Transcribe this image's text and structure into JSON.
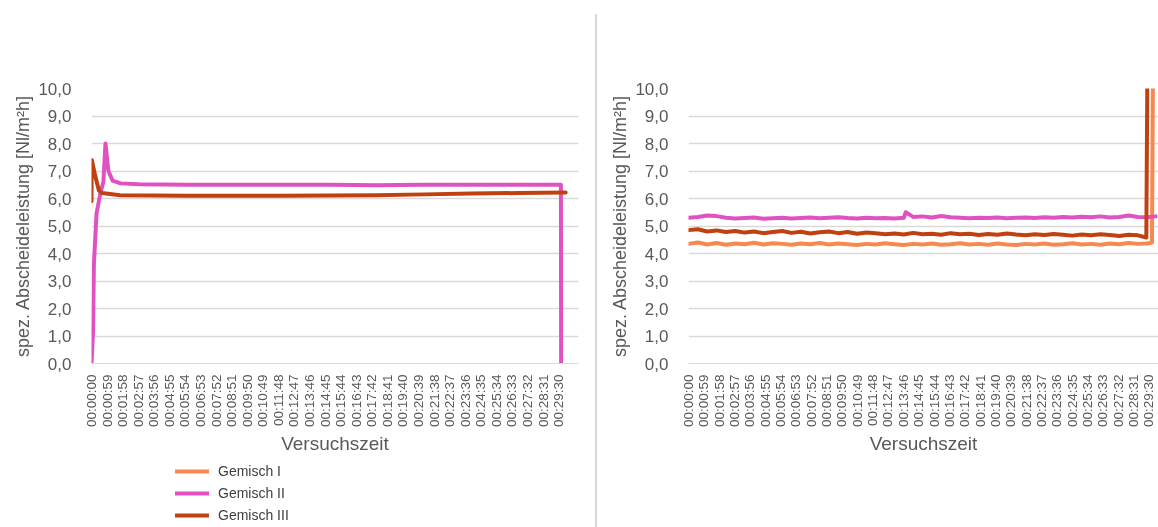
{
  "chart_data": [
    {
      "type": "line",
      "xlabel": "Versuchszeit",
      "ylabel": "spez. Abscheideleistung [Nl/m²h]",
      "xlim": [
        0,
        0.5125
      ],
      "ylim": [
        0,
        10
      ],
      "xticks": [
        {
          "value": 0,
          "label": "00:00:00"
        },
        {
          "value": 0.016389,
          "label": "00:00:59"
        },
        {
          "value": 0.032778,
          "label": "00:01:58"
        },
        {
          "value": 0.049167,
          "label": "00:02:57"
        },
        {
          "value": 0.065556,
          "label": "00:03:56"
        },
        {
          "value": 0.081944,
          "label": "00:04:55"
        },
        {
          "value": 0.098333,
          "label": "00:05:54"
        },
        {
          "value": 0.114722,
          "label": "00:06:53"
        },
        {
          "value": 0.131111,
          "label": "00:07:52"
        },
        {
          "value": 0.1475,
          "label": "00:08:51"
        },
        {
          "value": 0.163889,
          "label": "00:09:50"
        },
        {
          "value": 0.180278,
          "label": "00:10:49"
        },
        {
          "value": 0.196667,
          "label": "00:11:48"
        },
        {
          "value": 0.213056,
          "label": "00:12:47"
        },
        {
          "value": 0.229444,
          "label": "00:13:46"
        },
        {
          "value": 0.245833,
          "label": "00:14:45"
        },
        {
          "value": 0.262222,
          "label": "00:15:44"
        },
        {
          "value": 0.278611,
          "label": "00:16:43"
        },
        {
          "value": 0.295,
          "label": "00:17:42"
        },
        {
          "value": 0.311389,
          "label": "00:18:41"
        },
        {
          "value": 0.327778,
          "label": "00:19:40"
        },
        {
          "value": 0.344167,
          "label": "00:20:39"
        },
        {
          "value": 0.360556,
          "label": "00:21:38"
        },
        {
          "value": 0.376944,
          "label": "00:22:37"
        },
        {
          "value": 0.393333,
          "label": "00:23:36"
        },
        {
          "value": 0.409722,
          "label": "00:24:35"
        },
        {
          "value": 0.426111,
          "label": "00:25:34"
        },
        {
          "value": 0.4425,
          "label": "00:26:33"
        },
        {
          "value": 0.458889,
          "label": "00:27:32"
        },
        {
          "value": 0.475278,
          "label": "00:28:31"
        },
        {
          "value": 0.491667,
          "label": "00:29:30"
        }
      ],
      "yticks": [
        {
          "value": 0,
          "label": "0,0"
        },
        {
          "value": 1,
          "label": "1,0"
        },
        {
          "value": 2,
          "label": "2,0"
        },
        {
          "value": 3,
          "label": "3,0"
        },
        {
          "value": 4,
          "label": "4,0"
        },
        {
          "value": 5,
          "label": "5,0"
        },
        {
          "value": 6,
          "label": "6,0"
        },
        {
          "value": 7,
          "label": "7,0"
        },
        {
          "value": 8,
          "label": "8,0"
        },
        {
          "value": 9,
          "label": "9,0"
        },
        {
          "value": 10,
          "label": "10,0"
        }
      ],
      "grid": "y",
      "legend": "bottom left",
      "line_style": "solid",
      "series": [
        {
          "name": "Gemisch I",
          "color": "#f5894f"
        },
        {
          "name": "Gemisch II",
          "color": "#e052c2",
          "x": [
            0,
            0.0017,
            0.0025,
            0.0053,
            0.0094,
            0.0125,
            0.0147,
            0.0178,
            0.0222,
            0.0306,
            0.05,
            0.1,
            0.15,
            0.2,
            0.25,
            0.3,
            0.35,
            0.4,
            0.45,
            0.494,
            0.4942
          ],
          "values": [
            0,
            1.2,
            3.6,
            5.45,
            6.2,
            6.6,
            8.0,
            7.0,
            6.65,
            6.55,
            6.52,
            6.5,
            6.5,
            6.5,
            6.5,
            6.48,
            6.5,
            6.5,
            6.5,
            6.5,
            0
          ]
        },
        {
          "name": "Gemisch III",
          "color": "#c0410f",
          "x": [
            0,
            0.0003,
            0.0042,
            0.0078,
            0.0111,
            0.03,
            0.1,
            0.2,
            0.3,
            0.35,
            0.4,
            0.45,
            0.499
          ],
          "values": [
            5.9,
            7.4,
            6.78,
            6.29,
            6.2,
            6.12,
            6.1,
            6.1,
            6.12,
            6.15,
            6.18,
            6.2,
            6.22
          ]
        }
      ]
    },
    {
      "type": "line",
      "xlabel": "Versuchszeit",
      "ylabel": "spez. Abscheideleistung [Nl/m²h]",
      "xlim": [
        0,
        0.502
      ],
      "ylim": [
        0,
        10
      ],
      "xticks": [
        {
          "value": 0,
          "label": "00:00:00"
        },
        {
          "value": 0.016389,
          "label": "00:00:59"
        },
        {
          "value": 0.032778,
          "label": "00:01:58"
        },
        {
          "value": 0.049167,
          "label": "00:02:57"
        },
        {
          "value": 0.065556,
          "label": "00:03:56"
        },
        {
          "value": 0.081944,
          "label": "00:04:55"
        },
        {
          "value": 0.098333,
          "label": "00:05:54"
        },
        {
          "value": 0.114722,
          "label": "00:06:53"
        },
        {
          "value": 0.131111,
          "label": "00:07:52"
        },
        {
          "value": 0.1475,
          "label": "00:08:51"
        },
        {
          "value": 0.163889,
          "label": "00:09:50"
        },
        {
          "value": 0.180278,
          "label": "00:10:49"
        },
        {
          "value": 0.196667,
          "label": "00:11:48"
        },
        {
          "value": 0.213056,
          "label": "00:12:47"
        },
        {
          "value": 0.229444,
          "label": "00:13:46"
        },
        {
          "value": 0.245833,
          "label": "00:14:45"
        },
        {
          "value": 0.262222,
          "label": "00:15:44"
        },
        {
          "value": 0.278611,
          "label": "00:16:43"
        },
        {
          "value": 0.295,
          "label": "00:17:42"
        },
        {
          "value": 0.311389,
          "label": "00:18:41"
        },
        {
          "value": 0.327778,
          "label": "00:19:40"
        },
        {
          "value": 0.344167,
          "label": "00:20:39"
        },
        {
          "value": 0.360556,
          "label": "00:21:38"
        },
        {
          "value": 0.376944,
          "label": "00:22:37"
        },
        {
          "value": 0.393333,
          "label": "00:23:36"
        },
        {
          "value": 0.409722,
          "label": "00:24:35"
        },
        {
          "value": 0.426111,
          "label": "00:25:34"
        },
        {
          "value": 0.4425,
          "label": "00:26:33"
        },
        {
          "value": 0.458889,
          "label": "00:27:32"
        },
        {
          "value": 0.475278,
          "label": "00:28:31"
        },
        {
          "value": 0.491667,
          "label": "00:29:30"
        }
      ],
      "yticks": [
        {
          "value": 0,
          "label": "0,0"
        },
        {
          "value": 1,
          "label": "1,0"
        },
        {
          "value": 2,
          "label": "2,0"
        },
        {
          "value": 3,
          "label": "3,0"
        },
        {
          "value": 4,
          "label": "4,0"
        },
        {
          "value": 5,
          "label": "5,0"
        },
        {
          "value": 6,
          "label": "6,0"
        },
        {
          "value": 7,
          "label": "7,0"
        },
        {
          "value": 8,
          "label": "8,0"
        },
        {
          "value": 9,
          "label": "9,0"
        },
        {
          "value": 10,
          "label": "10,0"
        }
      ],
      "grid": "y",
      "line_style": "solid",
      "series": [
        {
          "color": "#f5894f",
          "x": [
            0,
            0.01,
            0.02,
            0.03,
            0.04,
            0.05,
            0.06,
            0.07,
            0.08,
            0.09,
            0.1,
            0.11,
            0.12,
            0.13,
            0.14,
            0.15,
            0.16,
            0.17,
            0.18,
            0.19,
            0.2,
            0.21,
            0.22,
            0.23,
            0.24,
            0.25,
            0.26,
            0.27,
            0.28,
            0.29,
            0.3,
            0.31,
            0.32,
            0.33,
            0.34,
            0.35,
            0.36,
            0.37,
            0.38,
            0.39,
            0.4,
            0.41,
            0.42,
            0.43,
            0.44,
            0.45,
            0.46,
            0.47,
            0.48,
            0.49,
            0.495,
            0.496
          ],
          "values": [
            4.35,
            4.4,
            4.33,
            4.38,
            4.32,
            4.36,
            4.34,
            4.39,
            4.33,
            4.37,
            4.35,
            4.32,
            4.36,
            4.34,
            4.38,
            4.33,
            4.36,
            4.34,
            4.31,
            4.35,
            4.33,
            4.37,
            4.34,
            4.31,
            4.35,
            4.33,
            4.36,
            4.32,
            4.34,
            4.37,
            4.33,
            4.35,
            4.32,
            4.36,
            4.33,
            4.31,
            4.35,
            4.33,
            4.36,
            4.32,
            4.34,
            4.37,
            4.33,
            4.35,
            4.32,
            4.36,
            4.34,
            4.38,
            4.35,
            4.36,
            4.4,
            10.0
          ]
        },
        {
          "color": "#e052c2",
          "x": [
            0,
            0.01,
            0.02,
            0.03,
            0.04,
            0.05,
            0.06,
            0.07,
            0.08,
            0.09,
            0.1,
            0.11,
            0.12,
            0.13,
            0.14,
            0.15,
            0.16,
            0.17,
            0.18,
            0.19,
            0.2,
            0.21,
            0.22,
            0.23,
            0.232,
            0.24,
            0.25,
            0.26,
            0.27,
            0.28,
            0.29,
            0.3,
            0.31,
            0.32,
            0.33,
            0.34,
            0.35,
            0.36,
            0.37,
            0.38,
            0.39,
            0.4,
            0.41,
            0.42,
            0.43,
            0.44,
            0.45,
            0.46,
            0.47,
            0.48,
            0.49,
            0.499
          ],
          "values": [
            5.3,
            5.33,
            5.38,
            5.36,
            5.3,
            5.27,
            5.29,
            5.31,
            5.26,
            5.28,
            5.3,
            5.27,
            5.29,
            5.31,
            5.28,
            5.3,
            5.32,
            5.29,
            5.27,
            5.3,
            5.28,
            5.29,
            5.27,
            5.3,
            5.5,
            5.33,
            5.35,
            5.31,
            5.36,
            5.32,
            5.3,
            5.28,
            5.3,
            5.29,
            5.31,
            5.28,
            5.3,
            5.31,
            5.29,
            5.32,
            5.3,
            5.33,
            5.31,
            5.34,
            5.32,
            5.35,
            5.31,
            5.33,
            5.38,
            5.33,
            5.32,
            5.35
          ]
        },
        {
          "color": "#c0410f",
          "x": [
            0,
            0.01,
            0.02,
            0.03,
            0.04,
            0.05,
            0.06,
            0.07,
            0.08,
            0.09,
            0.1,
            0.11,
            0.12,
            0.13,
            0.14,
            0.15,
            0.16,
            0.17,
            0.18,
            0.19,
            0.2,
            0.21,
            0.22,
            0.23,
            0.24,
            0.25,
            0.26,
            0.27,
            0.28,
            0.29,
            0.3,
            0.31,
            0.32,
            0.33,
            0.34,
            0.35,
            0.36,
            0.37,
            0.38,
            0.39,
            0.4,
            0.41,
            0.42,
            0.43,
            0.44,
            0.45,
            0.46,
            0.47,
            0.48,
            0.489,
            0.49
          ],
          "values": [
            4.85,
            4.88,
            4.8,
            4.84,
            4.78,
            4.82,
            4.76,
            4.8,
            4.74,
            4.78,
            4.82,
            4.75,
            4.79,
            4.73,
            4.77,
            4.8,
            4.74,
            4.78,
            4.72,
            4.76,
            4.74,
            4.7,
            4.73,
            4.69,
            4.75,
            4.7,
            4.72,
            4.68,
            4.74,
            4.7,
            4.72,
            4.67,
            4.71,
            4.68,
            4.73,
            4.69,
            4.66,
            4.7,
            4.67,
            4.71,
            4.68,
            4.65,
            4.69,
            4.66,
            4.7,
            4.67,
            4.64,
            4.68,
            4.66,
            4.58,
            10.0
          ]
        }
      ]
    }
  ]
}
